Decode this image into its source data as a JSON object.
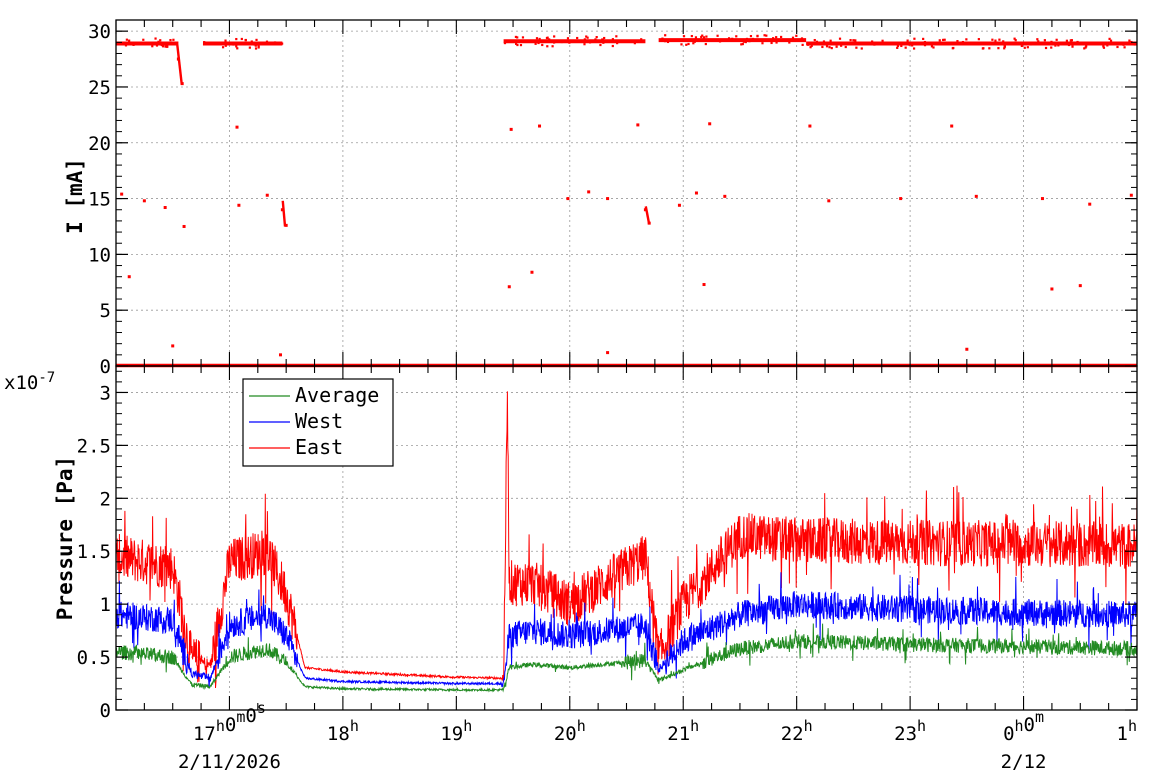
{
  "chart_data": [
    {
      "type": "scatter",
      "panel": "beam-current",
      "ylabel": "I [mA]",
      "ylim": [
        0,
        31
      ],
      "yticks": [
        0,
        5,
        10,
        15,
        20,
        25,
        30
      ],
      "grid": true,
      "x_unit": "hours",
      "xlim": [
        "2026-02-11 16:00",
        "2026-02-12 01:00"
      ],
      "series": [
        {
          "color": "#ff0000",
          "segments": [
            {
              "x": [
                "16:00",
                "16:33"
              ],
              "y": 28.9
            },
            {
              "x": [
                "16:46",
                "17:28"
              ],
              "y": 28.9
            },
            {
              "x": [
                "19:25",
                "20:40"
              ],
              "y": 29.1
            },
            {
              "x": [
                "20:47",
                "22:05"
              ],
              "y": 29.2
            },
            {
              "x": [
                "22:05",
                "01:00"
              ],
              "y": 28.9
            },
            {
              "x": [
                "16:00",
                "01:00"
              ],
              "y": 0.05
            }
          ],
          "points": [
            {
              "x": "16:33",
              "y": 27.5
            },
            {
              "x": "16:35",
              "y": 25.3
            },
            {
              "x": "16:03",
              "y": 15.4
            },
            {
              "x": "16:15",
              "y": 14.8
            },
            {
              "x": "16:26",
              "y": 14.2
            },
            {
              "x": "16:36",
              "y": 12.5
            },
            {
              "x": "16:07",
              "y": 8.0
            },
            {
              "x": "17:04",
              "y": 21.4
            },
            {
              "x": "17:05",
              "y": 14.4
            },
            {
              "x": "17:20",
              "y": 15.3
            },
            {
              "x": "17:28",
              "y": 14.0
            },
            {
              "x": "17:30",
              "y": 12.6
            },
            {
              "x": "19:28",
              "y": 7.1
            },
            {
              "x": "19:29",
              "y": 21.2
            },
            {
              "x": "19:44",
              "y": 21.5
            },
            {
              "x": "19:40",
              "y": 8.4
            },
            {
              "x": "19:59",
              "y": 15.0
            },
            {
              "x": "20:10",
              "y": 15.6
            },
            {
              "x": "20:20",
              "y": 15.0
            },
            {
              "x": "20:36",
              "y": 21.6
            },
            {
              "x": "20:40",
              "y": 14.0
            },
            {
              "x": "20:42",
              "y": 12.8
            },
            {
              "x": "20:58",
              "y": 14.4
            },
            {
              "x": "21:07",
              "y": 15.5
            },
            {
              "x": "21:22",
              "y": 15.2
            },
            {
              "x": "21:11",
              "y": 7.3
            },
            {
              "x": "21:14",
              "y": 21.7
            },
            {
              "x": "22:07",
              "y": 21.5
            },
            {
              "x": "22:17",
              "y": 14.8
            },
            {
              "x": "22:55",
              "y": 15.0
            },
            {
              "x": "23:22",
              "y": 21.5
            },
            {
              "x": "23:35",
              "y": 15.2
            },
            {
              "x": "00:10",
              "y": 15.0
            },
            {
              "x": "00:15",
              "y": 6.9
            },
            {
              "x": "00:30",
              "y": 7.2
            },
            {
              "x": "00:35",
              "y": 14.5
            },
            {
              "x": "00:57",
              "y": 15.3
            },
            {
              "x": "16:30",
              "y": 1.8
            },
            {
              "x": "17:27",
              "y": 1.0
            },
            {
              "x": "20:20",
              "y": 1.2
            },
            {
              "x": "23:30",
              "y": 1.5
            }
          ]
        }
      ]
    },
    {
      "type": "line",
      "panel": "pressure",
      "ylabel": "Pressure [Pa]",
      "y_multiplier": "x10",
      "y_exponent": "-7",
      "ylim": [
        0,
        3.25
      ],
      "yticks": [
        0,
        0.5,
        1,
        1.5,
        2,
        2.5,
        3
      ],
      "ytick_labels": [
        "0",
        "0.5",
        "1",
        "1.5",
        "2",
        "2.5",
        "3"
      ],
      "grid": true,
      "legend_position": "top-left",
      "x_unit": "hours",
      "xlim": [
        "2026-02-11 16:00",
        "2026-02-12 01:00"
      ],
      "x_ticks": [
        {
          "hour": 17,
          "label": "17",
          "sup": "h",
          "label2": "0",
          "sup2": "m",
          "label3": "0",
          "sup3": "s",
          "date": "2/11/2026"
        },
        {
          "hour": 18,
          "label": "18",
          "sup": "h"
        },
        {
          "hour": 19,
          "label": "19",
          "sup": "h"
        },
        {
          "hour": 20,
          "label": "20",
          "sup": "h"
        },
        {
          "hour": 21,
          "label": "21",
          "sup": "h"
        },
        {
          "hour": 22,
          "label": "22",
          "sup": "h"
        },
        {
          "hour": 23,
          "label": "23",
          "sup": "h"
        },
        {
          "hour": 24,
          "label": "0",
          "sup": "h",
          "label2": "0",
          "sup2": "m",
          "date": "2/12"
        },
        {
          "hour": 25,
          "label": "1",
          "sup": "h"
        }
      ],
      "series": [
        {
          "name": "Average",
          "color": "#228b22",
          "x": [
            "16:00",
            "16:30",
            "16:40",
            "16:50",
            "17:00",
            "17:20",
            "17:30",
            "17:40",
            "18:00",
            "19:00",
            "19:25",
            "19:28",
            "19:40",
            "20:00",
            "20:40",
            "20:47",
            "21:00",
            "21:30",
            "22:00",
            "23:00",
            "00:00",
            "01:00"
          ],
          "y": [
            0.55,
            0.5,
            0.24,
            0.22,
            0.5,
            0.58,
            0.45,
            0.22,
            0.2,
            0.19,
            0.19,
            0.4,
            0.43,
            0.4,
            0.47,
            0.28,
            0.38,
            0.58,
            0.65,
            0.62,
            0.6,
            0.58
          ]
        },
        {
          "name": "West",
          "color": "#0000ff",
          "x": [
            "16:00",
            "16:30",
            "16:40",
            "16:50",
            "17:00",
            "17:20",
            "17:30",
            "17:40",
            "18:00",
            "19:00",
            "19:25",
            "19:28",
            "19:40",
            "20:00",
            "20:40",
            "20:47",
            "21:00",
            "21:30",
            "22:00",
            "23:00",
            "00:00",
            "01:00"
          ],
          "y": [
            0.9,
            0.85,
            0.34,
            0.3,
            0.8,
            0.9,
            0.7,
            0.3,
            0.27,
            0.25,
            0.25,
            0.7,
            0.75,
            0.7,
            0.8,
            0.38,
            0.65,
            0.9,
            1.0,
            0.95,
            0.92,
            0.9
          ]
        },
        {
          "name": "East",
          "color": "#ff0000",
          "x": [
            "16:00",
            "16:30",
            "16:40",
            "16:50",
            "17:00",
            "17:20",
            "17:30",
            "17:40",
            "18:00",
            "19:00",
            "19:25",
            "19:27",
            "19:28",
            "19:40",
            "20:00",
            "20:40",
            "20:47",
            "21:00",
            "21:30",
            "22:00",
            "23:00",
            "00:00",
            "01:00"
          ],
          "y": [
            1.45,
            1.35,
            0.48,
            0.42,
            1.4,
            1.5,
            1.1,
            0.4,
            0.36,
            0.31,
            0.3,
            3.05,
            1.2,
            1.2,
            1.0,
            1.45,
            0.5,
            1.0,
            1.65,
            1.6,
            1.58,
            1.57,
            1.55
          ]
        }
      ]
    }
  ]
}
